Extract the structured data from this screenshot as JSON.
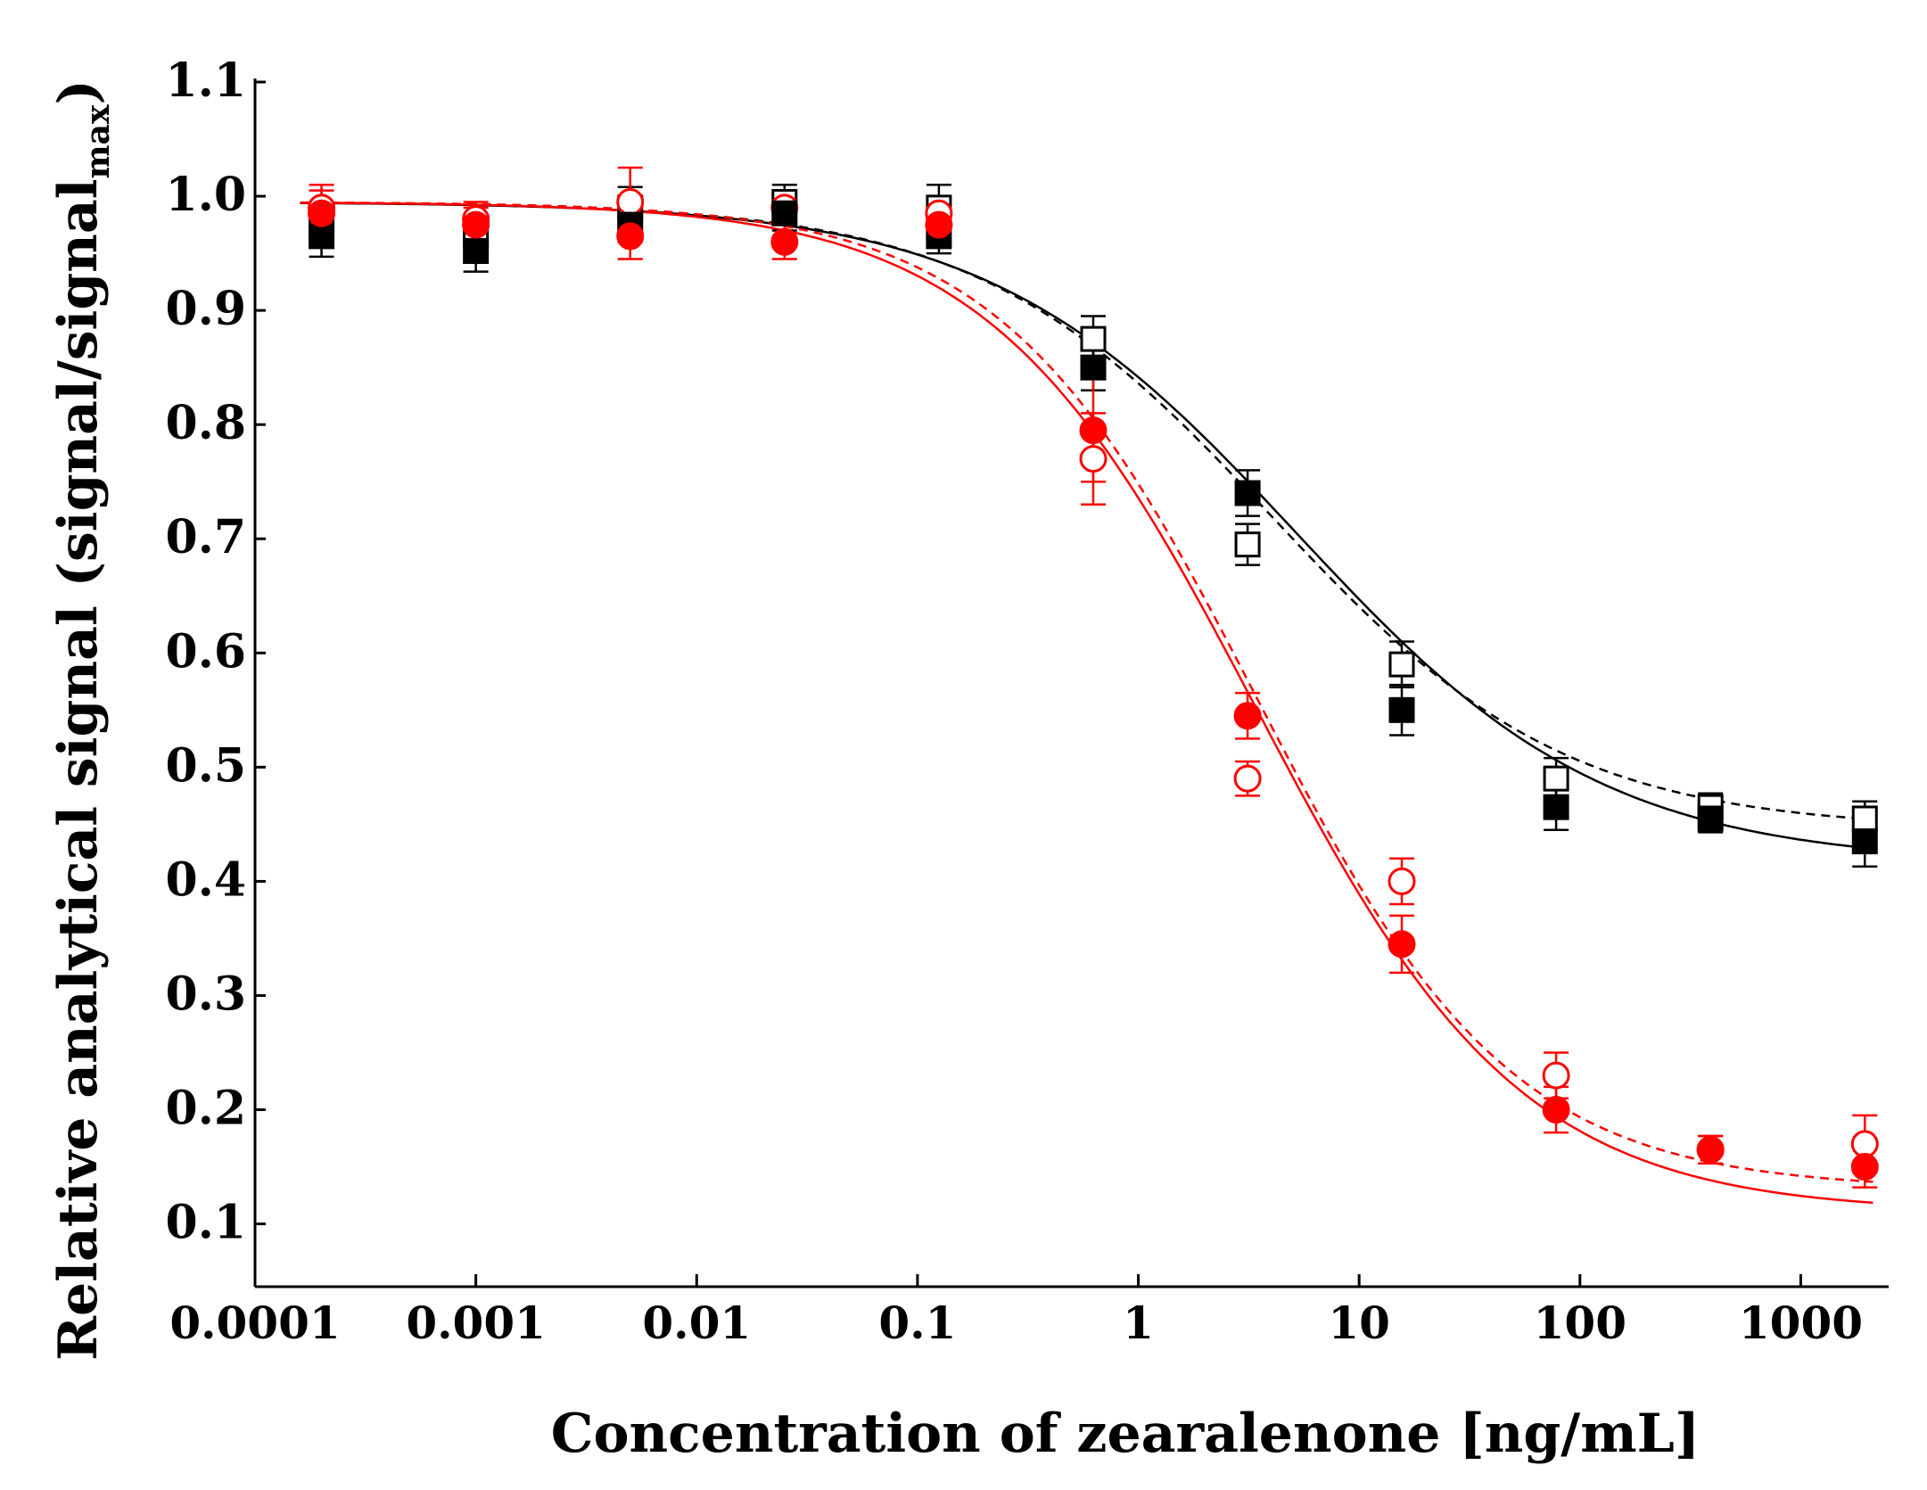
{
  "chart_data": {
    "type": "scatter",
    "xscale": "log",
    "xlabel": "Concentration of zearalenone [ng/mL]",
    "ylabel": "Relative analytical signal (signal/signal",
    "ylabel_subscript": "max",
    "ylabel_close": ")",
    "xlim": [
      0.0001,
      2500
    ],
    "ylim": [
      0.045,
      1.1
    ],
    "x_ticks": [
      0.0001,
      0.001,
      0.01,
      0.1,
      1,
      10,
      100,
      1000
    ],
    "x_tick_labels": [
      "0.0001",
      "0.001",
      "0.01",
      "0.1",
      "1",
      "10",
      "100",
      "1000"
    ],
    "y_ticks": [
      0.1,
      0.2,
      0.3,
      0.4,
      0.5,
      0.6,
      0.7,
      0.8,
      0.9,
      1.0,
      1.1
    ],
    "y_tick_labels": [
      "0.1",
      "0.2",
      "0.3",
      "0.4",
      "0.5",
      "0.6",
      "0.7",
      "0.8",
      "0.9",
      "1.0",
      "1.1"
    ],
    "grid": false,
    "series": [
      {
        "name": "black filled squares",
        "color": "#000000",
        "marker": "square",
        "filled": true,
        "line": "solid",
        "points": [
          {
            "x": 0.0002,
            "y": 0.965,
            "err": 0.018
          },
          {
            "x": 0.001,
            "y": 0.952,
            "err": 0.018
          },
          {
            "x": 0.005,
            "y": 0.975,
            "err": 0.015
          },
          {
            "x": 0.025,
            "y": 0.985,
            "err": 0.015
          },
          {
            "x": 0.125,
            "y": 0.965,
            "err": 0.015
          },
          {
            "x": 0.625,
            "y": 0.85,
            "err": 0.02
          },
          {
            "x": 3.125,
            "y": 0.74,
            "err": 0.02
          },
          {
            "x": 15.6,
            "y": 0.55,
            "err": 0.022
          },
          {
            "x": 78,
            "y": 0.465,
            "err": 0.02
          },
          {
            "x": 390,
            "y": 0.455,
            "err": 0.012
          },
          {
            "x": 1950,
            "y": 0.435,
            "err": 0.022
          }
        ],
        "fit": {
          "top": 0.995,
          "bottom": 0.415,
          "ec50": 5.2,
          "hill": 0.62
        }
      },
      {
        "name": "black open squares",
        "color": "#000000",
        "marker": "square",
        "filled": false,
        "line": "dashed",
        "points": [
          {
            "x": 0.0002,
            "y": 0.975,
            "err": 0.015
          },
          {
            "x": 0.001,
            "y": 0.965,
            "err": 0.015
          },
          {
            "x": 0.005,
            "y": 0.99,
            "err": 0.018
          },
          {
            "x": 0.025,
            "y": 0.995,
            "err": 0.015
          },
          {
            "x": 0.125,
            "y": 0.99,
            "err": 0.02
          },
          {
            "x": 0.625,
            "y": 0.875,
            "err": 0.02
          },
          {
            "x": 3.125,
            "y": 0.695,
            "err": 0.018
          },
          {
            "x": 15.6,
            "y": 0.59,
            "err": 0.02
          },
          {
            "x": 78,
            "y": 0.49,
            "err": 0.018
          },
          {
            "x": 390,
            "y": 0.465,
            "err": 0.012
          },
          {
            "x": 1950,
            "y": 0.455,
            "err": 0.015
          }
        ],
        "fit": {
          "top": 0.995,
          "bottom": 0.445,
          "ec50": 4.0,
          "hill": 0.65
        }
      },
      {
        "name": "red filled circles",
        "color": "#ff0000",
        "marker": "circle",
        "filled": true,
        "line": "solid",
        "points": [
          {
            "x": 0.0002,
            "y": 0.985,
            "err": 0.025
          },
          {
            "x": 0.001,
            "y": 0.975,
            "err": 0.015
          },
          {
            "x": 0.005,
            "y": 0.965,
            "err": 0.02
          },
          {
            "x": 0.025,
            "y": 0.96,
            "err": 0.015
          },
          {
            "x": 0.125,
            "y": 0.975,
            "err": 0.015
          },
          {
            "x": 0.625,
            "y": 0.795,
            "err": 0.045
          },
          {
            "x": 3.125,
            "y": 0.545,
            "err": 0.02
          },
          {
            "x": 15.6,
            "y": 0.345,
            "err": 0.025
          },
          {
            "x": 78,
            "y": 0.2,
            "err": 0.02
          },
          {
            "x": 390,
            "y": 0.165,
            "err": 0.012
          },
          {
            "x": 1950,
            "y": 0.15,
            "err": 0.018
          }
        ],
        "fit": {
          "top": 0.995,
          "bottom": 0.11,
          "ec50": 3.4,
          "hill": 0.72
        }
      },
      {
        "name": "red open circles",
        "color": "#ff0000",
        "marker": "circle",
        "filled": false,
        "line": "dashed",
        "points": [
          {
            "x": 0.0002,
            "y": 0.99,
            "err": 0.015
          },
          {
            "x": 0.001,
            "y": 0.98,
            "err": 0.015
          },
          {
            "x": 0.005,
            "y": 0.995,
            "err": 0.03
          },
          {
            "x": 0.025,
            "y": 0.99,
            "err": 0.015
          },
          {
            "x": 0.125,
            "y": 0.985,
            "err": 0.015
          },
          {
            "x": 0.625,
            "y": 0.77,
            "err": 0.04
          },
          {
            "x": 3.125,
            "y": 0.49,
            "err": 0.015
          },
          {
            "x": 15.6,
            "y": 0.4,
            "err": 0.02
          },
          {
            "x": 78,
            "y": 0.23,
            "err": 0.02
          },
          {
            "x": 390,
            "y": 0.165,
            "err": 0.012
          },
          {
            "x": 1950,
            "y": 0.17,
            "err": 0.025
          }
        ],
        "fit": {
          "top": 0.995,
          "bottom": 0.13,
          "ec50": 3.4,
          "hill": 0.75
        }
      }
    ]
  }
}
